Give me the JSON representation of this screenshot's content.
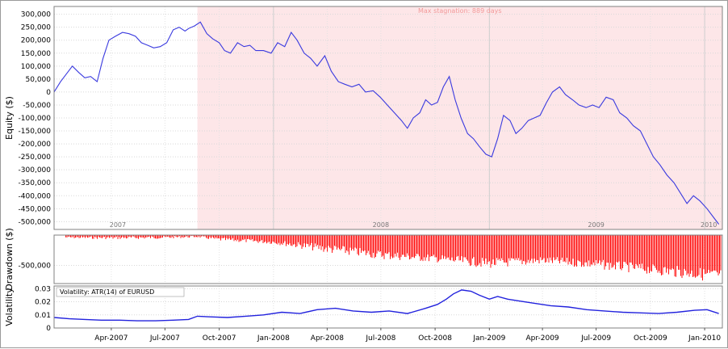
{
  "chart_data": [
    {
      "id": "equity",
      "type": "line",
      "ylabel": "Equity ($)",
      "ylim": [
        -530000,
        330000
      ],
      "yticks": [
        300000,
        250000,
        200000,
        150000,
        100000,
        50000,
        0,
        -50000,
        -100000,
        -150000,
        -200000,
        -250000,
        -300000,
        -350000,
        -400000,
        -450000,
        -500000
      ],
      "ytick_labels": [
        "300,000",
        "250,000",
        "200,000",
        "150,000",
        "100,000",
        "50,000",
        "0",
        "-50,000",
        "-100,000",
        "-150,000",
        "-200,000",
        "-250,000",
        "-300,000",
        "-350,000",
        "-400,000",
        "-450,000",
        "-500,000"
      ],
      "year_labels": [
        {
          "date": "2007-04-12",
          "text": "2007"
        },
        {
          "date": "2008-07-01",
          "text": "2008"
        },
        {
          "date": "2009-07-01",
          "text": "2009"
        },
        {
          "date": "2010-01-08",
          "text": "2010"
        }
      ],
      "stagnation": {
        "start": "2007-08-25",
        "end": "2010-01-31",
        "label": "Max stagnation: 889 days",
        "color": "#fde6e8",
        "text_color": "#f29a9a"
      },
      "line_color": "#3a3adf",
      "x": [
        "2006-12-25",
        "2007-01-05",
        "2007-01-15",
        "2007-01-25",
        "2007-02-05",
        "2007-02-15",
        "2007-02-25",
        "2007-03-08",
        "2007-03-18",
        "2007-03-28",
        "2007-04-08",
        "2007-04-20",
        "2007-05-01",
        "2007-05-12",
        "2007-05-22",
        "2007-06-02",
        "2007-06-12",
        "2007-06-23",
        "2007-07-04",
        "2007-07-15",
        "2007-07-25",
        "2007-08-04",
        "2007-08-10",
        "2007-08-20",
        "2007-08-30",
        "2007-09-10",
        "2007-09-20",
        "2007-10-01",
        "2007-10-10",
        "2007-10-20",
        "2007-11-01",
        "2007-11-12",
        "2007-11-22",
        "2007-12-02",
        "2007-12-15",
        "2007-12-28",
        "2008-01-08",
        "2008-01-20",
        "2008-01-31",
        "2008-02-10",
        "2008-02-22",
        "2008-03-04",
        "2008-03-15",
        "2008-03-28",
        "2008-04-08",
        "2008-04-20",
        "2008-05-01",
        "2008-05-13",
        "2008-05-25",
        "2008-06-05",
        "2008-06-18",
        "2008-06-30",
        "2008-07-12",
        "2008-07-24",
        "2008-08-05",
        "2008-08-15",
        "2008-08-25",
        "2008-09-05",
        "2008-09-15",
        "2008-09-25",
        "2008-10-05",
        "2008-10-15",
        "2008-10-25",
        "2008-11-04",
        "2008-11-14",
        "2008-11-25",
        "2008-12-05",
        "2008-12-15",
        "2008-12-26",
        "2009-01-05",
        "2009-01-15",
        "2009-01-25",
        "2009-02-05",
        "2009-02-15",
        "2009-02-25",
        "2009-03-08",
        "2009-03-18",
        "2009-03-28",
        "2009-04-08",
        "2009-04-18",
        "2009-04-30",
        "2009-05-10",
        "2009-05-22",
        "2009-06-02",
        "2009-06-14",
        "2009-06-25",
        "2009-07-06",
        "2009-07-18",
        "2009-07-30",
        "2009-08-10",
        "2009-08-22",
        "2009-09-02",
        "2009-09-14",
        "2009-09-25",
        "2009-10-06",
        "2009-10-17",
        "2009-10-29",
        "2009-11-10",
        "2009-11-21",
        "2009-12-02",
        "2009-12-13",
        "2009-12-24",
        "2010-01-05",
        "2010-01-15",
        "2010-01-25"
      ],
      "y": [
        0,
        40000,
        70000,
        100000,
        75000,
        55000,
        60000,
        40000,
        130000,
        200000,
        215000,
        230000,
        225000,
        215000,
        190000,
        180000,
        170000,
        175000,
        190000,
        240000,
        250000,
        235000,
        245000,
        255000,
        270000,
        225000,
        205000,
        190000,
        160000,
        150000,
        190000,
        175000,
        180000,
        160000,
        160000,
        150000,
        190000,
        175000,
        230000,
        200000,
        150000,
        130000,
        100000,
        140000,
        80000,
        40000,
        30000,
        20000,
        30000,
        0,
        5000,
        -20000,
        -50000,
        -80000,
        -110000,
        -140000,
        -100000,
        -80000,
        -30000,
        -50000,
        -40000,
        20000,
        60000,
        -30000,
        -100000,
        -160000,
        -180000,
        -210000,
        -240000,
        -250000,
        -180000,
        -90000,
        -110000,
        -160000,
        -140000,
        -110000,
        -100000,
        -90000,
        -40000,
        0,
        20000,
        -10000,
        -30000,
        -50000,
        -60000,
        -50000,
        -60000,
        -20000,
        -30000,
        -80000,
        -100000,
        -130000,
        -150000,
        -200000,
        -250000,
        -280000,
        -320000,
        -350000,
        -390000,
        -430000,
        -400000,
        -420000,
        -450000,
        -480000,
        -510000
      ]
    },
    {
      "id": "drawdown",
      "type": "bar",
      "ylabel": "Drawdown ($)",
      "ylim": [
        -800000,
        0
      ],
      "yticks": [
        -500000
      ],
      "ytick_labels": [
        "-500,000"
      ],
      "bar_color": "#ff1010",
      "x": [
        "2007-01-01",
        "2007-04-01",
        "2007-07-01",
        "2007-08-25",
        "2007-10-01",
        "2008-01-01",
        "2008-04-01",
        "2008-07-01",
        "2008-10-01",
        "2008-12-31",
        "2009-04-01",
        "2009-07-01",
        "2009-10-01",
        "2010-01-31"
      ],
      "envelope": [
        -50000,
        -70000,
        -60000,
        -40000,
        -100000,
        -150000,
        -300000,
        -400000,
        -450000,
        -550000,
        -480000,
        -560000,
        -650000,
        -790000
      ],
      "base": [
        -20000,
        -20000,
        -15000,
        -10000,
        -40000,
        -80000,
        -150000,
        -250000,
        -320000,
        -380000,
        -350000,
        -400000,
        -480000,
        -560000
      ]
    },
    {
      "id": "volatility",
      "type": "line",
      "ylabel": "Volatility",
      "legend": "Volatility: ATR(14) of EURUSD",
      "ylim": [
        0,
        0.032
      ],
      "yticks": [
        0.03,
        0.02,
        0.01,
        0
      ],
      "ytick_labels": [
        "0.03",
        "0.02",
        "0.01",
        "0"
      ],
      "line_color": "#2222dd",
      "x": [
        "2006-12-25",
        "2007-01-20",
        "2007-02-15",
        "2007-03-15",
        "2007-04-15",
        "2007-05-15",
        "2007-06-15",
        "2007-07-15",
        "2007-08-10",
        "2007-08-25",
        "2007-09-15",
        "2007-10-15",
        "2007-11-15",
        "2007-12-15",
        "2008-01-15",
        "2008-02-15",
        "2008-03-15",
        "2008-04-15",
        "2008-05-15",
        "2008-06-15",
        "2008-07-15",
        "2008-08-15",
        "2008-09-15",
        "2008-10-05",
        "2008-10-20",
        "2008-11-01",
        "2008-11-15",
        "2008-12-01",
        "2008-12-15",
        "2009-01-01",
        "2009-01-15",
        "2009-02-01",
        "2009-02-15",
        "2009-03-15",
        "2009-04-15",
        "2009-05-15",
        "2009-06-15",
        "2009-07-15",
        "2009-08-15",
        "2009-09-15",
        "2009-10-15",
        "2009-11-15",
        "2009-12-15",
        "2010-01-05",
        "2010-01-25"
      ],
      "y": [
        0.008,
        0.007,
        0.0065,
        0.006,
        0.006,
        0.0055,
        0.0055,
        0.006,
        0.0065,
        0.009,
        0.0085,
        0.008,
        0.009,
        0.01,
        0.012,
        0.011,
        0.014,
        0.015,
        0.013,
        0.012,
        0.013,
        0.011,
        0.015,
        0.018,
        0.022,
        0.026,
        0.029,
        0.028,
        0.025,
        0.022,
        0.024,
        0.022,
        0.021,
        0.019,
        0.017,
        0.016,
        0.014,
        0.013,
        0.012,
        0.0115,
        0.011,
        0.012,
        0.0135,
        0.014,
        0.011
      ]
    }
  ],
  "x_axis": {
    "start": "2006-12-25",
    "end": "2010-01-31",
    "ticks": [
      {
        "date": "2007-04-01",
        "label": "Apr-2007"
      },
      {
        "date": "2007-07-01",
        "label": "Jul-2007"
      },
      {
        "date": "2007-10-01",
        "label": "Oct-2007"
      },
      {
        "date": "2008-01-01",
        "label": "Jan-2008"
      },
      {
        "date": "2008-04-01",
        "label": "Apr-2008"
      },
      {
        "date": "2008-07-01",
        "label": "Jul-2008"
      },
      {
        "date": "2008-10-01",
        "label": "Oct-2008"
      },
      {
        "date": "2009-01-01",
        "label": "Jan-2009"
      },
      {
        "date": "2009-04-01",
        "label": "Apr-2009"
      },
      {
        "date": "2009-07-01",
        "label": "Jul-2009"
      },
      {
        "date": "2009-10-01",
        "label": "Oct-2009"
      },
      {
        "date": "2010-01-01",
        "label": "Jan-2010"
      }
    ],
    "year_boundaries": [
      "2008-01-01",
      "2009-01-01",
      "2010-01-01"
    ]
  }
}
